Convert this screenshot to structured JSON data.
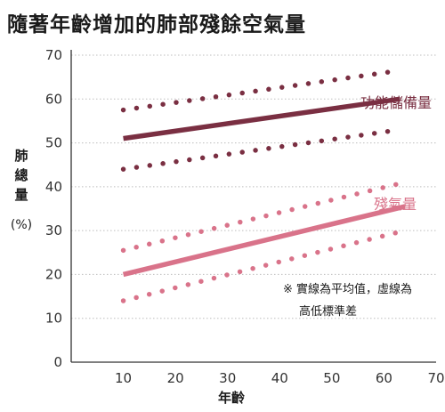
{
  "chart_data": {
    "type": "line",
    "title": "隨著年齡增加的肺部殘餘空氣量",
    "xlabel": "年齡",
    "ylabel": [
      "肺",
      "總",
      "量"
    ],
    "yunit": "(%)",
    "xlim": [
      0,
      70
    ],
    "ylim": [
      0,
      70
    ],
    "xticks": [
      10,
      20,
      30,
      40,
      50,
      60,
      70
    ],
    "yticks": [
      0,
      10,
      20,
      30,
      40,
      50,
      60,
      70
    ],
    "grid": true,
    "series": [
      {
        "name": "功能儲備量",
        "style": "solid",
        "color": "#7a2f42",
        "points": [
          [
            10,
            51
          ],
          [
            63,
            60
          ]
        ]
      },
      {
        "name": "功能儲備量 +SD",
        "style": "dotted",
        "color": "#7a2f42",
        "points": [
          [
            10,
            57.5
          ],
          [
            63,
            66.5
          ]
        ]
      },
      {
        "name": "功能儲備量 -SD",
        "style": "dotted",
        "color": "#7a2f42",
        "points": [
          [
            10,
            44
          ],
          [
            63,
            53
          ]
        ]
      },
      {
        "name": "殘氣量",
        "style": "solid",
        "color": "#d9738a",
        "points": [
          [
            10,
            20
          ],
          [
            64,
            35.5
          ]
        ]
      },
      {
        "name": "殘氣量 +SD",
        "style": "dotted",
        "color": "#d9738a",
        "points": [
          [
            10,
            25.5
          ],
          [
            64,
            41
          ]
        ]
      },
      {
        "name": "殘氣量 -SD",
        "style": "dotted",
        "color": "#d9738a",
        "points": [
          [
            10,
            14
          ],
          [
            64,
            30
          ]
        ]
      }
    ],
    "labels": {
      "reserve": "功能儲備量",
      "residual": "殘氣量"
    },
    "note": [
      "※ 實線為平均值，虛線為",
      "高低標準差"
    ]
  }
}
